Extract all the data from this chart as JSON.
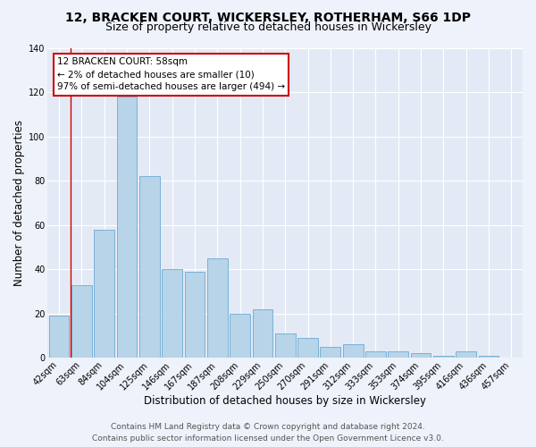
{
  "title": "12, BRACKEN COURT, WICKERSLEY, ROTHERHAM, S66 1DP",
  "subtitle": "Size of property relative to detached houses in Wickersley",
  "xlabel": "Distribution of detached houses by size in Wickersley",
  "ylabel": "Number of detached properties",
  "categories": [
    "42sqm",
    "63sqm",
    "84sqm",
    "104sqm",
    "125sqm",
    "146sqm",
    "167sqm",
    "187sqm",
    "208sqm",
    "229sqm",
    "250sqm",
    "270sqm",
    "291sqm",
    "312sqm",
    "333sqm",
    "353sqm",
    "374sqm",
    "395sqm",
    "416sqm",
    "436sqm",
    "457sqm"
  ],
  "values": [
    19,
    33,
    58,
    118,
    82,
    40,
    39,
    45,
    20,
    22,
    11,
    9,
    5,
    6,
    3,
    3,
    2,
    1,
    3,
    1,
    0
  ],
  "bar_color": "#b8d4e8",
  "bar_edge_color": "#6aaad4",
  "highlight_bar_index": 0,
  "highlight_bar_color": "#7ab8d8",
  "highlight_bar_edge_color": "#4a8ab8",
  "red_line_x": 0.5,
  "annotation_title": "12 BRACKEN COURT: 58sqm",
  "annotation_line1": "← 2% of detached houses are smaller (10)",
  "annotation_line2": "97% of semi-detached houses are larger (494) →",
  "annotation_box_color": "#ffffff",
  "annotation_box_edge_color": "#cc0000",
  "red_line_color": "#cc0000",
  "ylim": [
    0,
    140
  ],
  "yticks": [
    0,
    20,
    40,
    60,
    80,
    100,
    120,
    140
  ],
  "footer_line1": "Contains HM Land Registry data © Crown copyright and database right 2024.",
  "footer_line2": "Contains public sector information licensed under the Open Government Licence v3.0.",
  "background_color": "#eef2fa",
  "plot_background_color": "#e4eaf5",
  "grid_color": "#ffffff",
  "title_fontsize": 10,
  "subtitle_fontsize": 9,
  "axis_label_fontsize": 8.5,
  "tick_fontsize": 7,
  "annotation_fontsize": 7.5,
  "footer_fontsize": 6.5
}
